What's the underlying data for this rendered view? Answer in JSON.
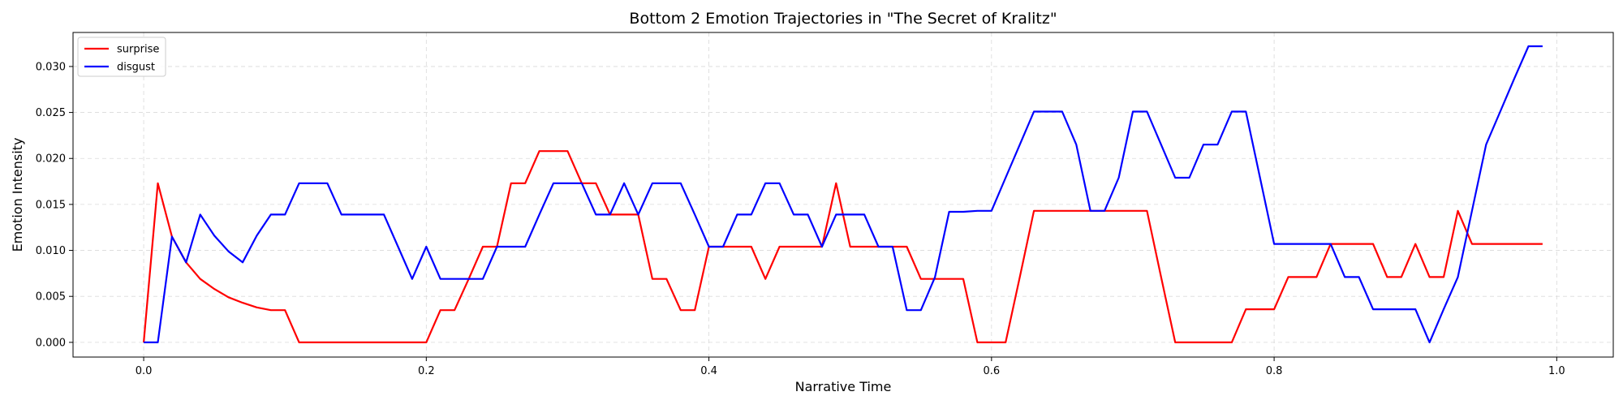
{
  "chart_data": {
    "type": "line",
    "title": "Bottom 2 Emotion Trajectories in \"The Secret of Kralitz\"",
    "xlabel": "Narrative Time",
    "ylabel": "Emotion Intensity",
    "xlim": [
      -0.05,
      1.04
    ],
    "ylim": [
      -0.0016,
      0.0337
    ],
    "xticks": [
      0.0,
      0.2,
      0.4,
      0.6,
      0.8,
      1.0
    ],
    "xtick_labels": [
      "0.0",
      "0.2",
      "0.4",
      "0.6",
      "0.8",
      "1.0"
    ],
    "yticks": [
      0.0,
      0.005,
      0.01,
      0.015,
      0.02,
      0.025,
      0.03
    ],
    "ytick_labels": [
      "0.000",
      "0.005",
      "0.010",
      "0.015",
      "0.020",
      "0.025",
      "0.030"
    ],
    "grid": true,
    "legend_position": "top-left",
    "x": [
      0.0,
      0.01,
      0.02,
      0.03,
      0.04,
      0.05,
      0.06,
      0.07,
      0.08,
      0.09,
      0.1,
      0.11,
      0.12,
      0.13,
      0.14,
      0.15,
      0.16,
      0.17,
      0.18,
      0.19,
      0.2,
      0.21,
      0.22,
      0.23,
      0.24,
      0.25,
      0.26,
      0.27,
      0.28,
      0.29,
      0.3,
      0.31,
      0.32,
      0.33,
      0.34,
      0.35,
      0.36,
      0.37,
      0.38,
      0.39,
      0.4,
      0.41,
      0.42,
      0.43,
      0.44,
      0.45,
      0.46,
      0.47,
      0.48,
      0.49,
      0.5,
      0.51,
      0.52,
      0.53,
      0.54,
      0.55,
      0.56,
      0.57,
      0.58,
      0.59,
      0.6,
      0.61,
      0.62,
      0.63,
      0.64,
      0.65,
      0.66,
      0.67,
      0.68,
      0.69,
      0.7,
      0.71,
      0.72,
      0.73,
      0.74,
      0.75,
      0.76,
      0.77,
      0.78,
      0.79,
      0.8,
      0.81,
      0.82,
      0.83,
      0.84,
      0.85,
      0.86,
      0.87,
      0.88,
      0.89,
      0.9,
      0.91,
      0.92,
      0.93,
      0.94,
      0.95,
      0.96,
      0.97,
      0.98,
      0.99
    ],
    "series": [
      {
        "name": "surprise",
        "color": "#ff0000",
        "values": [
          0.0,
          0.0173,
          0.0115,
          0.0087,
          0.0069,
          0.0058,
          0.0049,
          0.0043,
          0.0038,
          0.0035,
          0.0035,
          0.0,
          0.0,
          0.0,
          0.0,
          0.0,
          0.0,
          0.0,
          0.0,
          0.0,
          0.0,
          0.0035,
          0.0035,
          0.0069,
          0.0104,
          0.0104,
          0.0173,
          0.0173,
          0.0208,
          0.0208,
          0.0208,
          0.0173,
          0.0173,
          0.0139,
          0.0139,
          0.0139,
          0.0069,
          0.0069,
          0.0035,
          0.0035,
          0.0104,
          0.0104,
          0.0104,
          0.0104,
          0.0069,
          0.0104,
          0.0104,
          0.0104,
          0.0104,
          0.0173,
          0.0104,
          0.0104,
          0.0104,
          0.0104,
          0.0104,
          0.0069,
          0.0069,
          0.0069,
          0.0069,
          0.0,
          0.0,
          0.0,
          0.0071,
          0.0143,
          0.0143,
          0.0143,
          0.0143,
          0.0143,
          0.0143,
          0.0143,
          0.0143,
          0.0143,
          0.0071,
          0.0,
          0.0,
          0.0,
          0.0,
          0.0,
          0.0036,
          0.0036,
          0.0036,
          0.0071,
          0.0071,
          0.0071,
          0.0107,
          0.0107,
          0.0107,
          0.0107,
          0.0071,
          0.0071,
          0.0107,
          0.0071,
          0.0071,
          0.0143,
          0.0107,
          0.0107,
          0.0107,
          0.0107,
          0.0107,
          0.0107
        ]
      },
      {
        "name": "disgust",
        "color": "#0000ff",
        "values": [
          0.0,
          0.0,
          0.0115,
          0.0087,
          0.0139,
          0.0116,
          0.0099,
          0.0087,
          0.0116,
          0.0139,
          0.0139,
          0.0173,
          0.0173,
          0.0173,
          0.0139,
          0.0139,
          0.0139,
          0.0139,
          0.0104,
          0.0069,
          0.0104,
          0.0069,
          0.0069,
          0.0069,
          0.0069,
          0.0104,
          0.0104,
          0.0104,
          0.0139,
          0.0173,
          0.0173,
          0.0173,
          0.0139,
          0.0139,
          0.0173,
          0.0139,
          0.0173,
          0.0173,
          0.0173,
          0.0139,
          0.0104,
          0.0104,
          0.0139,
          0.0139,
          0.0173,
          0.0173,
          0.0139,
          0.0139,
          0.0104,
          0.0139,
          0.0139,
          0.0139,
          0.0104,
          0.0104,
          0.0035,
          0.0035,
          0.0071,
          0.0142,
          0.0142,
          0.0143,
          0.0143,
          0.0179,
          0.0215,
          0.0251,
          0.0251,
          0.0251,
          0.0215,
          0.0143,
          0.0143,
          0.0179,
          0.0251,
          0.0251,
          0.0215,
          0.0179,
          0.0179,
          0.0215,
          0.0215,
          0.0251,
          0.0251,
          0.0179,
          0.0107,
          0.0107,
          0.0107,
          0.0107,
          0.0107,
          0.0071,
          0.0071,
          0.0036,
          0.0036,
          0.0036,
          0.0036,
          0.0,
          0.0036,
          0.0071,
          0.0143,
          0.0215,
          0.0251,
          0.0287,
          0.0322,
          0.0322
        ]
      }
    ]
  }
}
